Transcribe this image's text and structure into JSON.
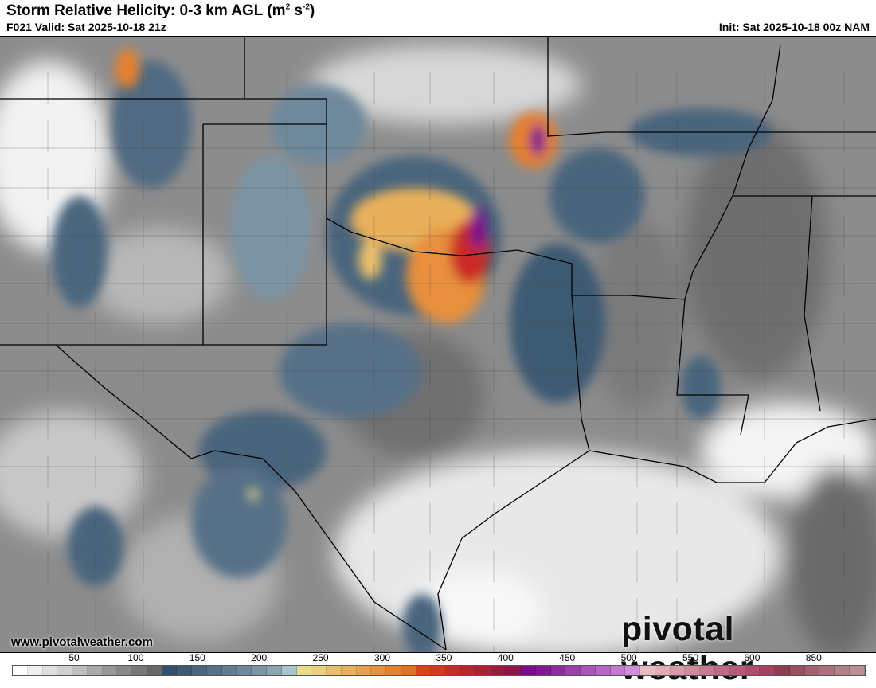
{
  "header": {
    "title": "Storm Relative Helicity: 0-3 km AGL (m",
    "title_sup1": "2",
    "title_mid": " s",
    "title_sup2": "-2",
    "title_end": ")",
    "valid": "F021 Valid: Sat 2025-10-18 21z",
    "init": "Init: Sat 2025-10-18 00z NAM"
  },
  "footer": {
    "website": "www.pivotalweather.com",
    "logo_text": "pivotal weather"
  },
  "colorbar": {
    "labels": [
      "50",
      "100",
      "150",
      "200",
      "250",
      "300",
      "350",
      "400",
      "450",
      "500",
      "550",
      "600",
      "850"
    ],
    "colors": [
      "#ffffff",
      "#efefef",
      "#dfdfdf",
      "#d0d0d0",
      "#bfbfbf",
      "#a9a9a9",
      "#989898",
      "#888888",
      "#787878",
      "#686868",
      "#33506a",
      "#3e5a73",
      "#4a657d",
      "#567187",
      "#627d91",
      "#6e899b",
      "#7b95a5",
      "#8aa5b1",
      "#a6c6cc",
      "#e6dd8e",
      "#e8d07e",
      "#e9bf6c",
      "#e9b05c",
      "#e9a04c",
      "#e8903c",
      "#e8802c",
      "#e8701a",
      "#df4212",
      "#d6381e",
      "#c92b28",
      "#bf222e",
      "#b01d36",
      "#a0183e",
      "#901448",
      "#7d0a8e",
      "#821896",
      "#8e2c9e",
      "#9c3fab",
      "#a954b8",
      "#b666c4",
      "#c37bd0",
      "#d08fdc",
      "#e8bac2",
      "#e0aab6",
      "#d89aaa",
      "#d08a9e",
      "#c87a92",
      "#c06a86",
      "#b85a7a",
      "#b04a6e",
      "#a84062",
      "#8e3e4e",
      "#985060",
      "#a26070",
      "#aa7080",
      "#b28088",
      "#ba9098"
    ]
  },
  "map": {
    "field": "storm-relative-helicity-0-3km",
    "max_region": "southern Oklahoma / north Texas"
  }
}
